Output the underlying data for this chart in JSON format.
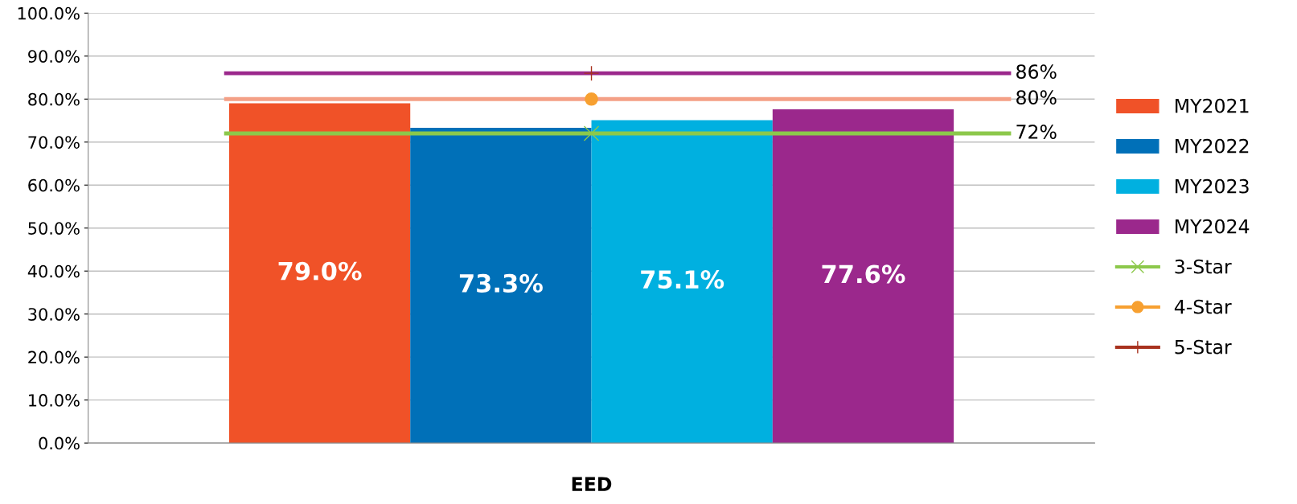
{
  "chart_data": {
    "type": "bar",
    "categories": [
      "EED"
    ],
    "series": [
      {
        "name": "MY2021",
        "color": "#f05228",
        "values": [
          79.0
        ],
        "value_labels": [
          "79.0%"
        ]
      },
      {
        "name": "MY2022",
        "color": "#0070b8",
        "values": [
          73.3
        ],
        "value_labels": [
          "73.3%"
        ]
      },
      {
        "name": "MY2023",
        "color": "#00b0e0",
        "values": [
          75.1
        ],
        "value_labels": [
          "75.1%"
        ]
      },
      {
        "name": "MY2024",
        "color": "#9b288c",
        "values": [
          77.6
        ],
        "value_labels": [
          "77.6%"
        ]
      },
      {
        "name": "3-Star",
        "type": "line",
        "marker": "cross",
        "color": "#8cc84b",
        "values": [
          72
        ]
      },
      {
        "name": "4-Star",
        "type": "line",
        "marker": "circle",
        "color": "#f7a030",
        "values": [
          80
        ]
      },
      {
        "name": "5-Star",
        "type": "line",
        "marker": "plus",
        "color": "#a8321e",
        "values": [
          86
        ]
      }
    ],
    "ref_lines": [
      {
        "axis": "y",
        "value": 86,
        "label": "86%",
        "color": "#9b288c"
      },
      {
        "axis": "y",
        "value": 80,
        "label": "80%",
        "color": "#f4a086"
      },
      {
        "axis": "y",
        "value": 72,
        "label": "72%",
        "color": "#8cc84b"
      }
    ],
    "ylim": [
      0,
      100
    ],
    "yticks": [
      {
        "value": 0,
        "label": "0.0%"
      },
      {
        "value": 10,
        "label": "10.0%"
      },
      {
        "value": 20,
        "label": "20.0%"
      },
      {
        "value": 30,
        "label": "30.0%"
      },
      {
        "value": 40,
        "label": "40.0%"
      },
      {
        "value": 50,
        "label": "50.0%"
      },
      {
        "value": 60,
        "label": "60.0%"
      },
      {
        "value": 70,
        "label": "70.0%"
      },
      {
        "value": 80,
        "label": "80.0%"
      },
      {
        "value": 90,
        "label": "90.0%"
      },
      {
        "value": 100,
        "label": "100.0%"
      }
    ],
    "grid": "y",
    "legend": "right"
  }
}
